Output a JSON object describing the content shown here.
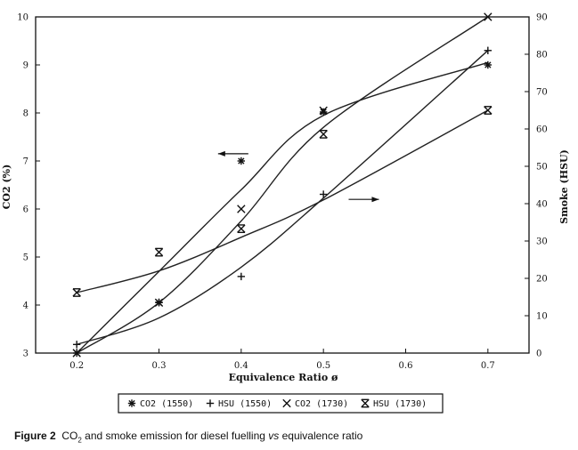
{
  "chart_data": {
    "type": "scatter",
    "title": "",
    "xlabel": "Equivalence Ratio ø",
    "ylabel_left": "CO2 (%)",
    "ylabel_right": "Smoke (HSU)",
    "xlim": [
      0.15,
      0.75
    ],
    "ylim_left": [
      3,
      10
    ],
    "ylim_right": [
      0,
      90
    ],
    "x_ticks": [
      0.2,
      0.3,
      0.4,
      0.5,
      0.6,
      0.7
    ],
    "y_ticks_left": [
      3,
      4,
      5,
      6,
      7,
      8,
      9,
      10
    ],
    "y_ticks_right": [
      0,
      10,
      20,
      30,
      40,
      50,
      60,
      70,
      80,
      90
    ],
    "series": [
      {
        "name": "CO2 (1550)",
        "marker": "asterisk",
        "axis": "left",
        "x": [
          0.2,
          0.3,
          0.4,
          0.5,
          0.7
        ],
        "y": [
          3.0,
          4.05,
          7.0,
          8.02,
          9.0
        ],
        "fit": [
          3.0,
          4.7,
          6.4,
          7.95,
          9.05
        ]
      },
      {
        "name": "HSU (1550)",
        "marker": "plus",
        "axis": "right",
        "x": [
          0.2,
          0.3,
          0.4,
          0.5,
          0.7
        ],
        "y": [
          2.3,
          13.6,
          20.5,
          42.5,
          81.0
        ],
        "fit": [
          2.3,
          9.4,
          23.0,
          41.5,
          81.0
        ]
      },
      {
        "name": "CO2 (1730)",
        "marker": "cross",
        "axis": "left",
        "x": [
          0.2,
          0.3,
          0.4,
          0.5,
          0.7
        ],
        "y": [
          3.0,
          4.05,
          6.0,
          8.05,
          10.0
        ],
        "fit": [
          3.0,
          4.05,
          5.75,
          7.7,
          10.0
        ]
      },
      {
        "name": "HSU (1730)",
        "marker": "hourglass",
        "axis": "right",
        "x": [
          0.2,
          0.3,
          0.4,
          0.5,
          0.7
        ],
        "y": [
          16.2,
          27.0,
          33.3,
          58.6,
          65.0
        ],
        "fit": [
          16.2,
          22.0,
          31.0,
          41.0,
          65.0
        ]
      }
    ],
    "annotations": [
      {
        "type": "arrow",
        "direction": "left",
        "points_to": "CO2 axis",
        "at_x": 0.4,
        "at_y_left": 7.15
      },
      {
        "type": "arrow",
        "direction": "right",
        "points_to": "Smoke axis",
        "at_x": 0.535,
        "at_y_left": 6.2
      }
    ],
    "legend_position": "bottom-center"
  },
  "caption": {
    "label": "Figure 2",
    "text_before_sub": "CO",
    "subscript": "2",
    "text_after_sub": " and smoke emission for diesel fuelling ",
    "italic": "vs",
    "text_end": " equivalence ratio"
  }
}
